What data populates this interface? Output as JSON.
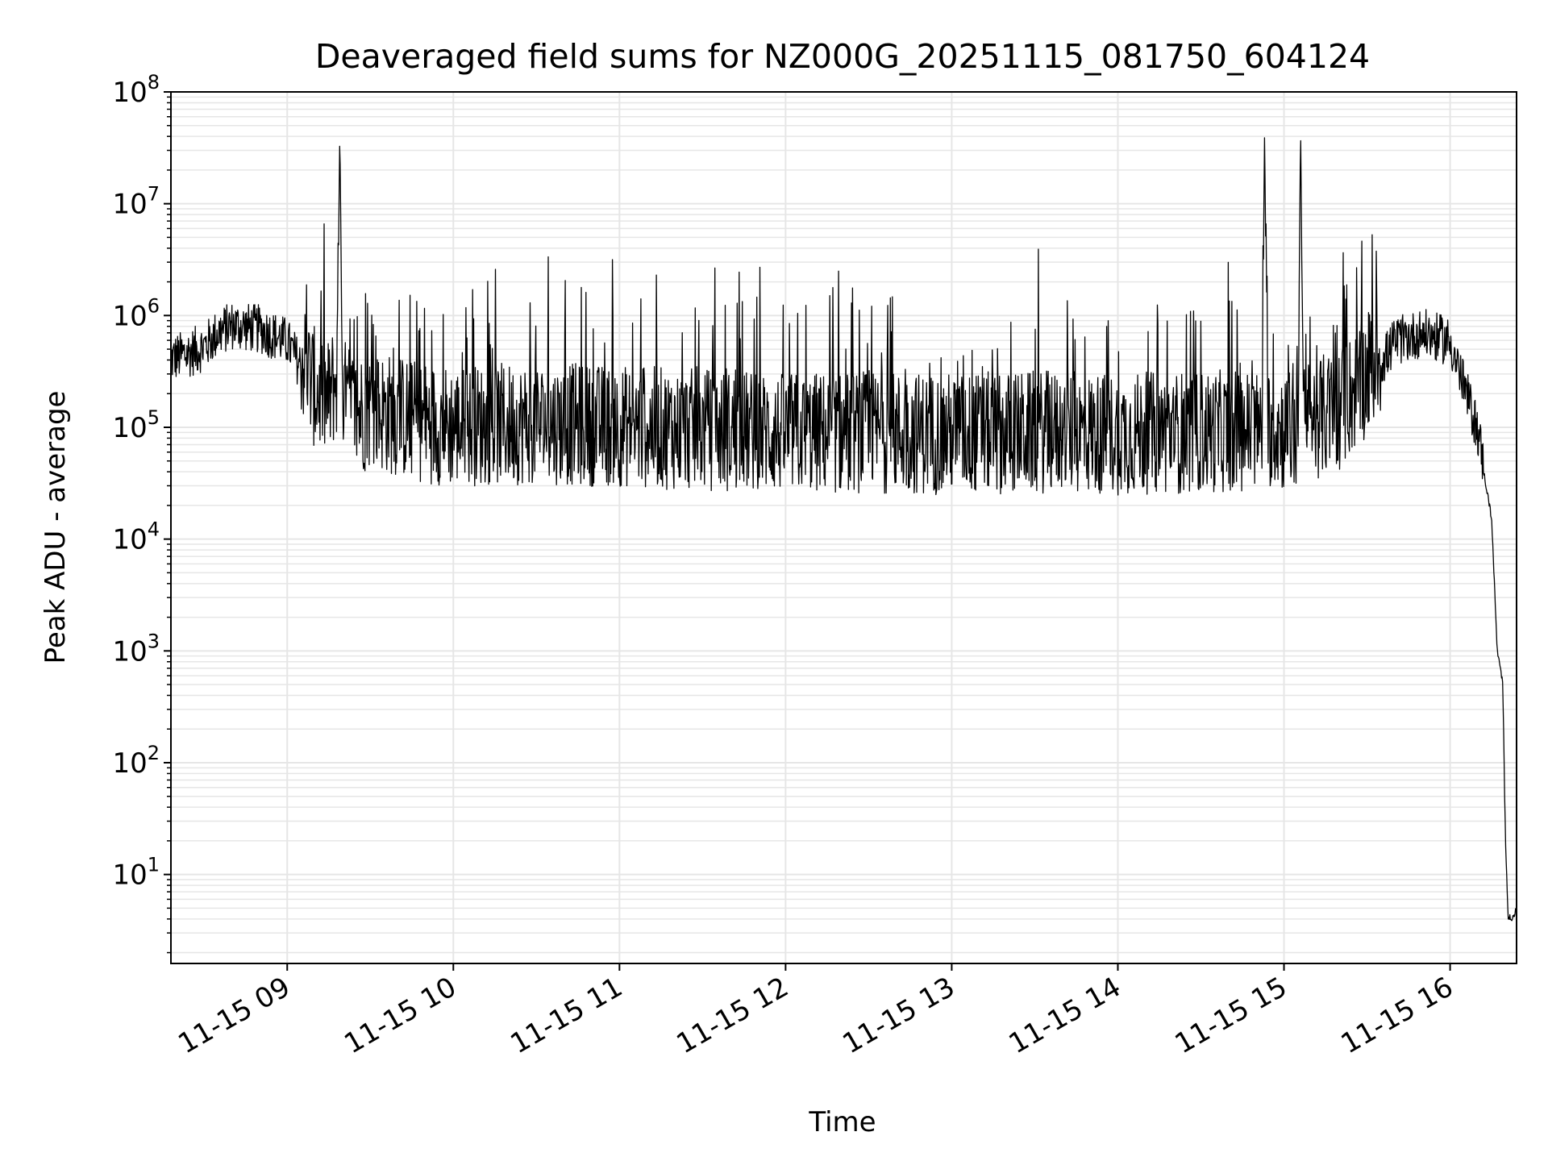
{
  "chart_data": {
    "type": "line",
    "title": "Deaveraged field sums for NZ000G_20251115_081750_604124",
    "xlabel": "Time",
    "ylabel": "Peak ADU - average",
    "yscale": "log",
    "ylim": [
      1.6,
      100000000
    ],
    "xlim": [
      "2025-11-15 08:18",
      "2025-11-15 16:24"
    ],
    "grid": true,
    "colors": {
      "line": "#000000",
      "grid": "#e6e6e6"
    },
    "x_ticks": [
      {
        "t": "2025-11-15 09:00",
        "label": "11-15 09"
      },
      {
        "t": "2025-11-15 10:00",
        "label": "11-15 10"
      },
      {
        "t": "2025-11-15 11:00",
        "label": "11-15 11"
      },
      {
        "t": "2025-11-15 12:00",
        "label": "11-15 12"
      },
      {
        "t": "2025-11-15 13:00",
        "label": "11-15 13"
      },
      {
        "t": "2025-11-15 14:00",
        "label": "11-15 14"
      },
      {
        "t": "2025-11-15 15:00",
        "label": "11-15 15"
      },
      {
        "t": "2025-11-15 16:00",
        "label": "11-15 16"
      }
    ],
    "y_ticks": [
      {
        "value": 10,
        "base": "10",
        "exp": "1"
      },
      {
        "value": 100,
        "base": "10",
        "exp": "2"
      },
      {
        "value": 1000,
        "base": "10",
        "exp": "3"
      },
      {
        "value": 10000,
        "base": "10",
        "exp": "4"
      },
      {
        "value": 100000,
        "base": "10",
        "exp": "5"
      },
      {
        "value": 1000000,
        "base": "10",
        "exp": "6"
      },
      {
        "value": 10000000,
        "base": "10",
        "exp": "7"
      },
      {
        "value": 100000000,
        "base": "10",
        "exp": "8"
      }
    ],
    "series": [
      {
        "x": [
          "2025-11-15 08:18",
          "2025-11-15 08:25",
          "2025-11-15 08:30",
          "2025-11-15 08:35",
          "2025-11-15 08:40",
          "2025-11-15 08:50",
          "2025-11-15 09:00",
          "2025-11-15 09:05",
          "2025-11-15 09:10",
          "2025-11-15 09:15",
          "2025-11-15 09:18",
          "2025-11-15 09:19",
          "2025-11-15 09:20",
          "2025-11-15 09:21",
          "2025-11-15 09:25",
          "2025-11-15 09:30",
          "2025-11-15 09:45",
          "2025-11-15 10:00",
          "2025-11-15 10:30",
          "2025-11-15 11:00",
          "2025-11-15 11:30",
          "2025-11-15 12:00",
          "2025-11-15 12:30",
          "2025-11-15 13:00",
          "2025-11-15 13:30",
          "2025-11-15 14:00",
          "2025-11-15 14:30",
          "2025-11-15 14:50",
          "2025-11-15 14:52",
          "2025-11-15 14:53",
          "2025-11-15 14:54",
          "2025-11-15 15:00",
          "2025-11-15 15:05",
          "2025-11-15 15:06",
          "2025-11-15 15:07",
          "2025-11-15 15:10",
          "2025-11-15 15:20",
          "2025-11-15 15:30",
          "2025-11-15 15:40",
          "2025-11-15 15:50",
          "2025-11-15 16:00",
          "2025-11-15 16:05",
          "2025-11-15 16:10",
          "2025-11-15 16:15",
          "2025-11-15 16:17",
          "2025-11-15 16:19",
          "2025-11-15 16:20",
          "2025-11-15 16:21",
          "2025-11-15 16:23",
          "2025-11-15 16:24"
        ],
        "y": [
          350000,
          400000,
          450000,
          600000,
          700000,
          650000,
          500000,
          300000,
          150000,
          120000,
          200000,
          46000000,
          150000,
          120000,
          90000,
          100000,
          80000,
          70000,
          75000,
          70000,
          65000,
          60000,
          62000,
          60000,
          62000,
          60000,
          62000,
          65000,
          60000,
          48000000,
          70000,
          65000,
          60000,
          52000000,
          70000,
          80000,
          100000,
          200000,
          500000,
          600000,
          500000,
          200000,
          80000,
          15000,
          1000,
          500,
          20,
          4,
          4,
          5
        ]
      }
    ]
  }
}
